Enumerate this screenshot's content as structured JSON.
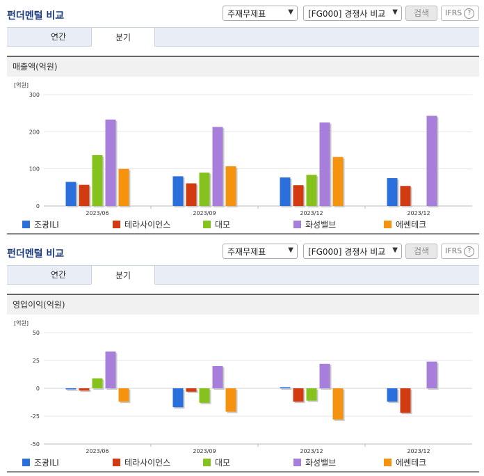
{
  "panels": [
    {
      "title": "펀더멘털 비교",
      "select1": "주재무제표",
      "select2": "[FG000] 경쟁사 비교",
      "search_label": "검색",
      "ifrs_label": "IFRS",
      "tabs": [
        {
          "label": "연간"
        },
        {
          "label": "분기"
        }
      ],
      "active_tab": "분기",
      "section_label": "매출액(억원)",
      "unit_label": "[억원]"
    },
    {
      "title": "펀더멘털 비교",
      "select1": "주재무제표",
      "select2": "[FG000] 경쟁사 비교",
      "search_label": "검색",
      "ifrs_label": "IFRS",
      "tabs": [
        {
          "label": "연간"
        },
        {
          "label": "분기"
        }
      ],
      "active_tab": "분기",
      "section_label": "영업이익(억원)",
      "unit_label": "[억원]"
    }
  ],
  "chart_data": [
    {
      "type": "bar",
      "title": "매출액(억원)",
      "unit": "[억원]",
      "categories": [
        "2023/06",
        "2023/09",
        "2023/12",
        "2023/12"
      ],
      "ylim": [
        0,
        300
      ],
      "yticks": [
        0,
        100,
        200,
        300
      ],
      "legend_position": "bottom",
      "series": [
        {
          "name": "조광ILI",
          "color": "#2a6fdb",
          "values": [
            65,
            80,
            77,
            75
          ]
        },
        {
          "name": "테라사이언스",
          "color": "#d23a12",
          "values": [
            57,
            61,
            56,
            54
          ]
        },
        {
          "name": "대모",
          "color": "#86c21e",
          "values": [
            137,
            90,
            84,
            null
          ]
        },
        {
          "name": "화성밸브",
          "color": "#a77ed9",
          "values": [
            233,
            213,
            225,
            243
          ]
        },
        {
          "name": "에쎈테크",
          "color": "#f5930f",
          "values": [
            100,
            107,
            132,
            null
          ]
        }
      ]
    },
    {
      "type": "bar",
      "title": "영업이익(억원)",
      "unit": "[억원]",
      "categories": [
        "2023/06",
        "2023/09",
        "2023/12",
        "2023/12"
      ],
      "ylim": [
        -50,
        50
      ],
      "yticks": [
        -50,
        -25,
        0,
        25,
        50
      ],
      "legend_position": "bottom",
      "series": [
        {
          "name": "조광ILI",
          "color": "#2a6fdb",
          "values": [
            -1,
            -17,
            1,
            -12
          ]
        },
        {
          "name": "테라사이언스",
          "color": "#d23a12",
          "values": [
            -2,
            -3,
            -12,
            -22
          ]
        },
        {
          "name": "대모",
          "color": "#86c21e",
          "values": [
            9,
            -13,
            -11,
            null
          ]
        },
        {
          "name": "화성밸브",
          "color": "#a77ed9",
          "values": [
            33,
            20,
            22,
            24
          ]
        },
        {
          "name": "에쎈테크",
          "color": "#f5930f",
          "values": [
            -12,
            -21,
            -28,
            null
          ]
        }
      ]
    }
  ]
}
